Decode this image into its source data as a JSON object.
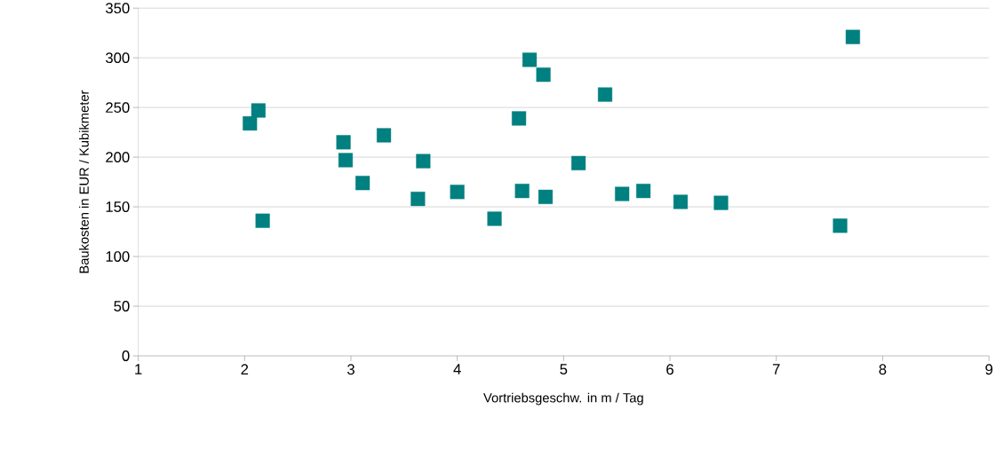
{
  "chart_data": {
    "type": "scatter",
    "xlabel": "Vortriebsgeschw. in m / Tag",
    "ylabel": "Baukosten in EUR / Kubikmeter",
    "x": [
      2.05,
      2.13,
      2.17,
      2.93,
      2.95,
      3.11,
      3.31,
      3.63,
      3.68,
      4.0,
      4.35,
      4.58,
      4.61,
      4.68,
      4.81,
      4.83,
      5.14,
      5.39,
      5.55,
      5.75,
      6.1,
      6.48,
      7.6,
      7.72
    ],
    "values": [
      234,
      247,
      136,
      215,
      197,
      174,
      222,
      158,
      196,
      165,
      138,
      239,
      166,
      298,
      283,
      160,
      194,
      263,
      163,
      166,
      155,
      154,
      131,
      321
    ],
    "color": "#008080",
    "marker": "square",
    "grid": "y",
    "xlim": [
      1,
      9
    ],
    "xticks": [
      1,
      2,
      3,
      4,
      5,
      6,
      7,
      8,
      9
    ],
    "ylim": [
      0,
      350
    ],
    "yticks": [
      0,
      50,
      100,
      150,
      200,
      250,
      300,
      350
    ]
  }
}
